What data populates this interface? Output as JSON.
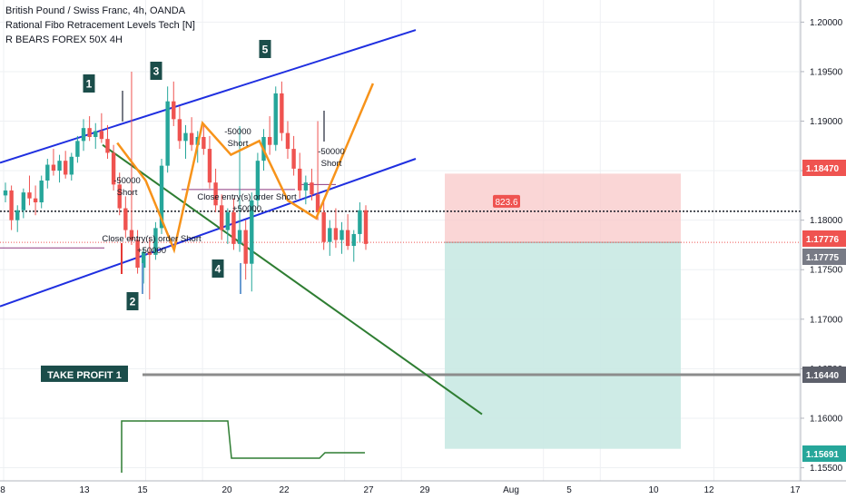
{
  "header": {
    "symbol_line": "British Pound / Swiss Franc, 4h, OANDA",
    "indicator_line": "Rational Fibo Retracement Levels Tech [N]",
    "strategy_line": "R BEARS FOREX 50X 4H"
  },
  "colors": {
    "up": "#26a69a",
    "down": "#ef5350",
    "channel": "#1f2fe0",
    "trend": "#2e7d32",
    "wave": "#f7931a",
    "label_bg": "#1b4d4a",
    "stop_zone": "#f8c8c8",
    "target_zone": "#c9e9e3",
    "tp_line": "#8c8c8c",
    "equity": "#2e7d32",
    "marker_red": "#e53935",
    "marker_gray": "#787b86",
    "marker_dark": "#131722"
  },
  "chart_data": {
    "type": "candlestick",
    "ylim": [
      1.1545,
      1.2015
    ],
    "price_ticks": [
      "1.20000",
      "1.19500",
      "1.19000",
      "1.18500",
      "1.18000",
      "1.17500",
      "1.17000",
      "1.16500",
      "1.16000",
      "1.15500"
    ],
    "date_ticks": [
      "8",
      "13",
      "15",
      "20",
      "22",
      "27",
      "29",
      "Aug",
      "5",
      "10",
      "12",
      "17"
    ],
    "price_badges": [
      {
        "text": "1.18470",
        "value": 1.1847,
        "color": "#ef5350"
      },
      {
        "text": "1.17776",
        "value": 1.17776,
        "color": "#ef5350"
      },
      {
        "text": "1.17775",
        "value": 1.17775,
        "color": "#787b86"
      },
      {
        "text": "1.16440",
        "value": 1.1644,
        "color": "#5d606b"
      },
      {
        "text": "1.15691",
        "value": 1.15691,
        "color": "#26a69a"
      }
    ],
    "dotted_line_price": 1.1809,
    "last_price_line": 1.17776,
    "take_profit": {
      "label": "TAKE PROFIT 1",
      "value": 1.1644
    },
    "position": {
      "entry": 1.17776,
      "stop": 1.1847,
      "target": 1.15691,
      "label": "823.6"
    },
    "channel_upper": {
      "from": [
        "Jul 8",
        1.1858
      ],
      "to": [
        "Jul 29",
        1.1992
      ]
    },
    "channel_lower": {
      "from": [
        "Jul 8",
        1.1713
      ],
      "to": [
        "Jul 29",
        1.1862
      ]
    },
    "trend_line": {
      "from": [
        "Jul 12",
        1.1876
      ],
      "to": [
        "Aug 2",
        1.1604
      ]
    },
    "wave_labels": [
      {
        "label": "1",
        "date": "Jul 12",
        "price": 1.1937
      },
      {
        "label": "2",
        "date": "Jul 14",
        "price": 1.1721
      },
      {
        "label": "3",
        "date": "Jul 15",
        "price": 1.1945
      },
      {
        "label": "4",
        "date": "Jul 19",
        "price": 1.175
      },
      {
        "label": "5",
        "date": "Jul 21",
        "price": 1.1972
      }
    ],
    "wave_path": [
      [
        "Jul 12",
        1.1878
      ],
      [
        "Jul 13",
        1.184
      ],
      [
        "Jul 14",
        1.177
      ],
      [
        "Jul 15",
        1.1898
      ],
      [
        "Jul 16",
        1.1866
      ],
      [
        "Jul 17",
        1.188
      ],
      [
        "Jul 18",
        1.182
      ],
      [
        "Jul 19",
        1.1802
      ],
      [
        "Jul 20",
        1.187
      ],
      [
        "Jul 21",
        1.1938
      ]
    ],
    "annotations": [
      {
        "text": "-50000",
        "date": "Jul 13",
        "price": 1.1825
      },
      {
        "text": "Short",
        "date": "Jul 13",
        "price": 1.1812
      },
      {
        "text": "Close entry(s) order Short",
        "date": "Jul 14",
        "price": 1.1782
      },
      {
        "text": "+50000",
        "date": "Jul 14",
        "price": 1.1769
      },
      {
        "text": "Close entry(s) order Short",
        "date": "Jul 20",
        "price": 1.1812
      },
      {
        "text": "+50000",
        "date": "Jul 20",
        "price": 1.1799
      },
      {
        "text": "-50000",
        "date": "Jul 20",
        "price": 1.1878
      },
      {
        "text": "Short",
        "date": "Jul 20",
        "price": 1.1865
      },
      {
        "text": "-50000",
        "date": "Jul 24",
        "price": 1.1858
      },
      {
        "text": "Short",
        "date": "Jul 24",
        "price": 1.1845
      }
    ],
    "equity_curve": [
      [
        "Jul 14",
        1.1545
      ],
      [
        "Jul 14",
        1.16
      ],
      [
        "Jul 20",
        1.16
      ],
      [
        "Jul 20",
        1.1569
      ],
      [
        "Jul 24",
        1.1569
      ],
      [
        "Jul 24",
        1.1573
      ],
      [
        "Jul 27",
        1.1573
      ]
    ],
    "candles": [
      [
        "Jul 8",
        1.1825,
        1.1838,
        1.1818,
        1.183
      ],
      [
        "Jul 8",
        1.183,
        1.1835,
        1.179,
        1.18
      ],
      [
        "Jul 8",
        1.18,
        1.1815,
        1.1788,
        1.181
      ],
      [
        "Jul 8",
        1.181,
        1.1832,
        1.1802,
        1.1828
      ],
      [
        "Jul 9",
        1.1828,
        1.1845,
        1.1815,
        1.1822
      ],
      [
        "Jul 9",
        1.1822,
        1.1835,
        1.1805,
        1.1818
      ],
      [
        "Jul 9",
        1.1818,
        1.1845,
        1.1812,
        1.184
      ],
      [
        "Jul 9",
        1.184,
        1.1862,
        1.1832,
        1.1856
      ],
      [
        "Jul 9",
        1.1856,
        1.1872,
        1.1845,
        1.185
      ],
      [
        "Jul 10",
        1.185,
        1.1866,
        1.1838,
        1.186
      ],
      [
        "Jul 10",
        1.186,
        1.187,
        1.1842,
        1.1846
      ],
      [
        "Jul 10",
        1.1846,
        1.1868,
        1.184,
        1.1864
      ],
      [
        "Jul 10",
        1.1864,
        1.1885,
        1.1858,
        1.188
      ],
      [
        "Jul 11",
        1.188,
        1.1902,
        1.187,
        1.1893
      ],
      [
        "Jul 11",
        1.1893,
        1.1905,
        1.188,
        1.1884
      ],
      [
        "Jul 11",
        1.1884,
        1.1898,
        1.1872,
        1.189
      ],
      [
        "Jul 12",
        1.189,
        1.1908,
        1.1878,
        1.1882
      ],
      [
        "Jul 12",
        1.1882,
        1.1896,
        1.1862,
        1.1868
      ],
      [
        "Jul 13",
        1.1868,
        1.1876,
        1.183,
        1.1836
      ],
      [
        "Jul 13",
        1.1836,
        1.1848,
        1.1805,
        1.1812
      ],
      [
        "Jul 13",
        1.1812,
        1.1824,
        1.1782,
        1.179
      ],
      [
        "Jul 14",
        1.179,
        1.195,
        1.1775,
        1.178
      ],
      [
        "Jul 14",
        1.178,
        1.179,
        1.1746,
        1.1752
      ],
      [
        "Jul 14",
        1.1752,
        1.1772,
        1.1736,
        1.1768
      ],
      [
        "Jul 14",
        1.1768,
        1.1782,
        1.172,
        1.1765
      ],
      [
        "Jul 15",
        1.1765,
        1.1798,
        1.176,
        1.1792
      ],
      [
        "Jul 15",
        1.1792,
        1.1862,
        1.1786,
        1.1855
      ],
      [
        "Jul 15",
        1.1855,
        1.1935,
        1.1848,
        1.192
      ],
      [
        "Jul 16",
        1.192,
        1.194,
        1.1895,
        1.1902
      ],
      [
        "Jul 16",
        1.1902,
        1.1915,
        1.1872,
        1.188
      ],
      [
        "Jul 16",
        1.188,
        1.1896,
        1.1862,
        1.1888
      ],
      [
        "Jul 17",
        1.1888,
        1.1904,
        1.187,
        1.1876
      ],
      [
        "Jul 17",
        1.1876,
        1.189,
        1.1858,
        1.1884
      ],
      [
        "Jul 17",
        1.1884,
        1.1896,
        1.1866,
        1.1872
      ],
      [
        "Jul 18",
        1.1872,
        1.1885,
        1.1832,
        1.1838
      ],
      [
        "Jul 18",
        1.1838,
        1.1852,
        1.1808,
        1.1815
      ],
      [
        "Jul 19",
        1.1815,
        1.1826,
        1.178,
        1.179
      ],
      [
        "Jul 19",
        1.179,
        1.1812,
        1.1776,
        1.1808
      ],
      [
        "Jul 19",
        1.1808,
        1.1822,
        1.177,
        1.1776
      ],
      [
        "Jul 20",
        1.1776,
        1.1895,
        1.1768,
        1.179
      ],
      [
        "Jul 20",
        1.179,
        1.18,
        1.174,
        1.1756
      ],
      [
        "Jul 20",
        1.1756,
        1.1828,
        1.1728,
        1.182
      ],
      [
        "Jul 20",
        1.182,
        1.1868,
        1.1812,
        1.186
      ],
      [
        "Jul 21",
        1.186,
        1.1892,
        1.185,
        1.1884
      ],
      [
        "Jul 21",
        1.1884,
        1.1905,
        1.1866,
        1.1876
      ],
      [
        "Jul 21",
        1.1876,
        1.1935,
        1.187,
        1.1928
      ],
      [
        "Jul 22",
        1.1928,
        1.194,
        1.188,
        1.1888
      ],
      [
        "Jul 22",
        1.1888,
        1.19,
        1.1862,
        1.1872
      ],
      [
        "Jul 22",
        1.1872,
        1.1885,
        1.1845,
        1.1852
      ],
      [
        "Jul 23",
        1.1852,
        1.1868,
        1.1822,
        1.183
      ],
      [
        "Jul 23",
        1.183,
        1.1845,
        1.1816,
        1.1838
      ],
      [
        "Jul 23",
        1.1838,
        1.1852,
        1.182,
        1.1826
      ],
      [
        "Jul 24",
        1.1826,
        1.19,
        1.18,
        1.1808
      ],
      [
        "Jul 24",
        1.1808,
        1.182,
        1.177,
        1.1778
      ],
      [
        "Jul 24",
        1.1778,
        1.18,
        1.1764,
        1.1792
      ],
      [
        "Jul 24",
        1.1792,
        1.1812,
        1.1772,
        1.178
      ],
      [
        "Jul 25",
        1.178,
        1.1798,
        1.1766,
        1.179
      ],
      [
        "Jul 25",
        1.179,
        1.1806,
        1.177,
        1.1774
      ],
      [
        "Jul 26",
        1.1774,
        1.179,
        1.1758,
        1.1786
      ],
      [
        "Jul 26",
        1.1786,
        1.1818,
        1.1778,
        1.181
      ],
      [
        "Jul 26",
        1.181,
        1.1815,
        1.177,
        1.1776
      ]
    ]
  }
}
